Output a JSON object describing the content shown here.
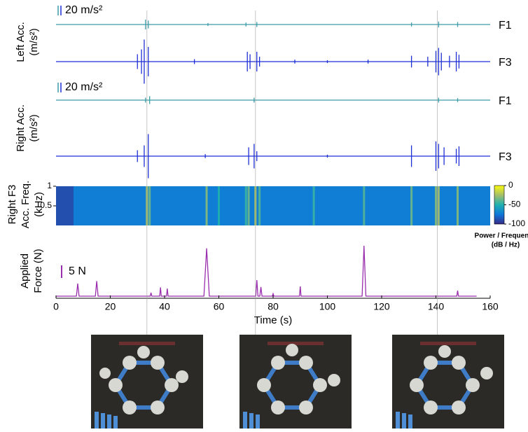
{
  "chart_data": [
    {
      "type": "spikes",
      "ylabel": [
        "Left Acc.",
        "(m/s²)"
      ],
      "scale_bar": {
        "value": 20,
        "label": "20 m/s²"
      },
      "xlim": [
        0,
        160
      ],
      "ylim": [
        -60,
        60
      ],
      "series": [
        {
          "name": "F1",
          "color": "#3a9ca8",
          "x": [
            33,
            34,
            56,
            70,
            74,
            131,
            141,
            148
          ],
          "values": [
            10,
            8,
            3,
            4,
            5,
            4,
            6,
            5
          ]
        },
        {
          "name": "F3",
          "color": "#1f2fd6",
          "x": [
            30,
            31.5,
            32.5,
            34,
            51,
            70.5,
            71.5,
            74,
            75,
            88,
            100,
            115,
            131,
            137,
            140,
            141,
            142,
            145,
            147.5,
            148.5
          ],
          "values": [
            15,
            25,
            45,
            30,
            5,
            20,
            15,
            20,
            10,
            4,
            3,
            4,
            12,
            10,
            22,
            28,
            18,
            12,
            20,
            14
          ]
        }
      ]
    },
    {
      "type": "spikes",
      "ylabel": [
        "Right Acc.",
        "(m/s²)"
      ],
      "scale_bar": {
        "value": 20,
        "label": "20 m/s²"
      },
      "xlim": [
        0,
        160
      ],
      "ylim": [
        -60,
        60
      ],
      "series": [
        {
          "name": "F1",
          "color": "#3a9ca8",
          "x": [
            33,
            34.5,
            73,
            141,
            148
          ],
          "values": [
            5,
            8,
            5,
            5,
            4
          ]
        },
        {
          "name": "F3",
          "color": "#1f2fd6",
          "x": [
            30,
            32.5,
            34,
            55,
            71,
            73,
            74,
            100,
            131,
            140,
            141,
            143,
            147.5,
            148.5
          ],
          "values": [
            12,
            22,
            45,
            4,
            18,
            25,
            10,
            3,
            22,
            30,
            25,
            18,
            15,
            20
          ]
        }
      ]
    },
    {
      "type": "heatmap",
      "ylabel": [
        "Right F3",
        "Acc. Freq.",
        "(kHz)"
      ],
      "xlim": [
        0,
        160
      ],
      "ylim": [
        0,
        1
      ],
      "yticks": [
        1,
        0.5
      ],
      "x": [
        33.5,
        34.5,
        55.5,
        60,
        70,
        71,
        73.5,
        75,
        95,
        113.5,
        131,
        140,
        141,
        148
      ],
      "values": [
        -20,
        -35,
        -30,
        -50,
        -45,
        -35,
        -20,
        -40,
        -45,
        -40,
        -35,
        -30,
        -25,
        -30
      ],
      "colorbar": {
        "lim": [
          -100,
          0
        ],
        "ticks": [
          0,
          -50,
          -100
        ],
        "label": [
          "Power / Frequency",
          "(dB / Hz)"
        ]
      }
    },
    {
      "type": "line",
      "ylabel": [
        "Applied",
        "Force (N)"
      ],
      "scale_bar": {
        "value": 5,
        "label": "5 N"
      },
      "color": "#9a2fae",
      "xlim": [
        0,
        160
      ],
      "ylim": [
        0,
        22
      ],
      "xticks": [
        0,
        20,
        40,
        60,
        80,
        100,
        120,
        140,
        160
      ],
      "xlabel": "Time (s)",
      "x": [
        0,
        7.5,
        8,
        8.5,
        14.5,
        15,
        15.5,
        34.7,
        35,
        35.3,
        38.2,
        38.5,
        38.8,
        40.7,
        41,
        41.3,
        54.5,
        55.5,
        56.5,
        73.6,
        74,
        74.4,
        75.1,
        75.5,
        75.9,
        79.7,
        80,
        80.3,
        89.7,
        90,
        90.3,
        112.8,
        113.5,
        114.2,
        147.7,
        148,
        148.3,
        155
      ],
      "values": [
        0,
        0,
        5,
        0,
        0,
        6,
        0,
        0,
        1.4,
        0,
        0,
        3.5,
        0,
        0,
        3,
        0,
        0,
        19,
        0,
        0,
        6.4,
        0,
        0,
        3.6,
        0,
        0,
        1,
        0,
        0,
        3.9,
        0,
        0,
        20,
        0,
        0,
        2.2,
        0,
        0
      ]
    }
  ],
  "event_times": [
    33.5,
    73.5,
    140.5
  ]
}
